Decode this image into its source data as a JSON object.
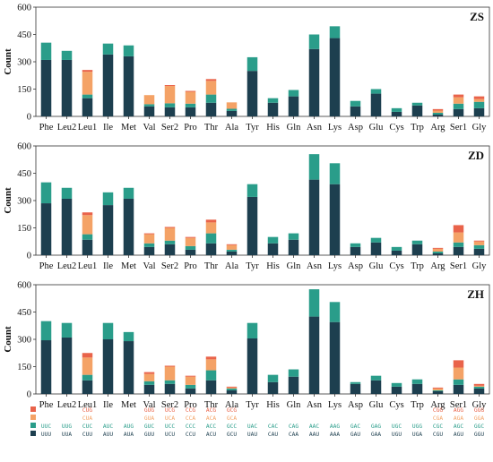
{
  "colors": {
    "c1": "#1d3f4f",
    "c2": "#2a9d8a",
    "c3": "#f4a266",
    "c4": "#e9634a"
  },
  "chart_data": [
    {
      "type": "bar",
      "stacked": true,
      "title": "ZS",
      "ylabel": "Count",
      "ylim": [
        0,
        600
      ],
      "yticks": [
        0,
        150,
        300,
        450,
        600
      ],
      "categories": [
        "Phe",
        "Leu2",
        "Leu1",
        "Ile",
        "Met",
        "Val",
        "Ser2",
        "Pro",
        "Thr",
        "Ala",
        "Tyr",
        "His",
        "Gln",
        "Asn",
        "Lys",
        "Asp",
        "Glu",
        "Cys",
        "Trp",
        "Arg",
        "Ser1",
        "Gly"
      ],
      "series": [
        {
          "values": [
            310,
            310,
            100,
            340,
            330,
            55,
            50,
            50,
            75,
            30,
            250,
            75,
            110,
            370,
            430,
            55,
            125,
            25,
            60,
            10,
            40,
            45
          ]
        },
        {
          "values": [
            95,
            50,
            20,
            60,
            60,
            12,
            22,
            20,
            45,
            12,
            75,
            25,
            35,
            80,
            65,
            30,
            25,
            20,
            15,
            10,
            30,
            35
          ]
        },
        {
          "values": [
            0,
            0,
            125,
            0,
            0,
            50,
            95,
            65,
            75,
            35,
            0,
            0,
            0,
            0,
            0,
            0,
            0,
            0,
            0,
            12,
            35,
            15
          ]
        },
        {
          "values": [
            0,
            0,
            10,
            0,
            0,
            0,
            5,
            5,
            10,
            0,
            0,
            0,
            0,
            0,
            0,
            0,
            0,
            0,
            0,
            8,
            15,
            15
          ]
        }
      ]
    },
    {
      "type": "bar",
      "stacked": true,
      "title": "ZD",
      "ylabel": "Count",
      "ylim": [
        0,
        600
      ],
      "yticks": [
        0,
        150,
        300,
        450,
        600
      ],
      "categories": [
        "Phe",
        "Leu2",
        "Leu1",
        "Ile",
        "Met",
        "Val",
        "Ser2",
        "Pro",
        "Thr",
        "Ala",
        "Tyr",
        "His",
        "Gln",
        "Asn",
        "Lys",
        "Asp",
        "Glu",
        "Cys",
        "Trp",
        "Arg",
        "Ser1",
        "Gly"
      ],
      "series": [
        {
          "values": [
            285,
            310,
            85,
            275,
            310,
            45,
            60,
            30,
            65,
            20,
            320,
            65,
            85,
            415,
            390,
            45,
            70,
            25,
            60,
            10,
            45,
            35
          ]
        },
        {
          "values": [
            115,
            60,
            30,
            70,
            60,
            20,
            20,
            20,
            55,
            10,
            70,
            35,
            35,
            140,
            115,
            20,
            25,
            20,
            20,
            10,
            25,
            20
          ]
        },
        {
          "values": [
            0,
            0,
            105,
            0,
            0,
            50,
            70,
            45,
            60,
            25,
            0,
            0,
            0,
            0,
            0,
            0,
            0,
            0,
            0,
            15,
            55,
            20
          ]
        },
        {
          "values": [
            0,
            0,
            15,
            0,
            0,
            5,
            5,
            5,
            15,
            5,
            0,
            0,
            0,
            0,
            0,
            0,
            0,
            0,
            0,
            5,
            40,
            5
          ]
        }
      ]
    },
    {
      "type": "bar",
      "stacked": true,
      "title": "ZH",
      "ylabel": "Count",
      "ylim": [
        0,
        600
      ],
      "yticks": [
        0,
        150,
        300,
        450,
        600
      ],
      "categories": [
        "Phe",
        "Leu2",
        "Leu1",
        "Ile",
        "Met",
        "Val",
        "Ser2",
        "Pro",
        "Thr",
        "Ala",
        "Tyr",
        "His",
        "Gln",
        "Asn",
        "Lys",
        "Asp",
        "Glu",
        "Cys",
        "Trp",
        "Arg",
        "Ser1",
        "Gly"
      ],
      "series": [
        {
          "values": [
            295,
            310,
            75,
            300,
            290,
            50,
            55,
            30,
            75,
            20,
            305,
            65,
            95,
            425,
            395,
            55,
            75,
            40,
            55,
            15,
            50,
            30
          ]
        },
        {
          "values": [
            105,
            80,
            30,
            90,
            50,
            20,
            20,
            20,
            55,
            10,
            85,
            40,
            40,
            150,
            110,
            10,
            25,
            20,
            25,
            5,
            30,
            10
          ]
        },
        {
          "values": [
            0,
            0,
            95,
            0,
            0,
            40,
            75,
            45,
            60,
            5,
            0,
            0,
            0,
            0,
            0,
            0,
            0,
            0,
            0,
            10,
            65,
            5
          ]
        },
        {
          "values": [
            0,
            0,
            25,
            0,
            0,
            10,
            5,
            5,
            15,
            5,
            0,
            0,
            0,
            0,
            0,
            0,
            0,
            0,
            0,
            5,
            40,
            10
          ]
        }
      ]
    }
  ],
  "codon_legend": {
    "row4": [
      "",
      "",
      "CUG",
      "",
      "",
      "GUG",
      "UCG",
      "CCG",
      "ACG",
      "GCG",
      "",
      "",
      "",
      "",
      "",
      "",
      "",
      "",
      "",
      "CGG",
      "AGG",
      "GGG"
    ],
    "row3": [
      "",
      "",
      "CUA",
      "",
      "",
      "GUA",
      "UCA",
      "CCA",
      "ACA",
      "GCA",
      "",
      "",
      "",
      "",
      "",
      "",
      "",
      "",
      "",
      "CGA",
      "AGA",
      "GGA"
    ],
    "row2": [
      "UUC",
      "UUG",
      "CUC",
      "AUC",
      "AUG",
      "GUC",
      "UCC",
      "CCC",
      "ACC",
      "GCC",
      "UAC",
      "CAC",
      "CAG",
      "AAC",
      "AAG",
      "GAC",
      "GAG",
      "UGC",
      "UGG",
      "CGC",
      "AGC",
      "GGC"
    ],
    "row1": [
      "UUU",
      "UUA",
      "CUU",
      "AUU",
      "AUA",
      "GUU",
      "UCU",
      "CCU",
      "ACU",
      "GCU",
      "UAU",
      "CAU",
      "CAA",
      "AAU",
      "AAA",
      "GAU",
      "GAA",
      "UGU",
      "UGA",
      "CGU",
      "AGU",
      "GGU"
    ]
  }
}
